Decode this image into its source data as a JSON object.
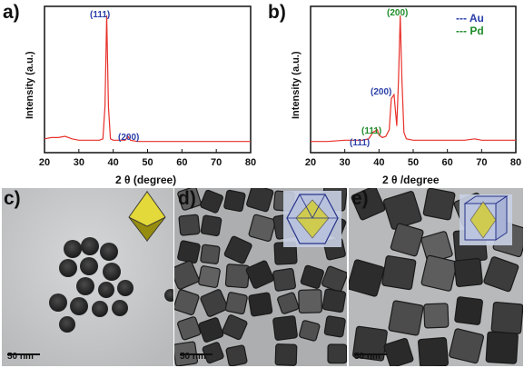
{
  "panels": {
    "a": {
      "letter": "a)",
      "ylabel": "Intensity (a.u.)",
      "xlabel": "2 θ (degree)",
      "peak1": "(111)",
      "peak2": "(200)"
    },
    "b": {
      "letter": "b)",
      "ylabel": "Intensity (a.u.)",
      "xlabel": "2 θ /degree",
      "legend_au": "--- Au",
      "legend_pd": "--- Pd",
      "peak_pd200": "(200)",
      "peak_au200": "(200)",
      "peak_pd111": "(111)",
      "peak_au111": "(111)"
    },
    "c": {
      "letter": "c)",
      "scalebar": "50 nm"
    },
    "d": {
      "letter": "d)",
      "scalebar": "50 nm"
    },
    "e": {
      "letter": "e)",
      "scalebar": "50 nm"
    }
  },
  "colors": {
    "xrd_line": "#e8302a",
    "au": "#2a3fa8",
    "pd": "#1e8c2a"
  },
  "chart_data": [
    {
      "type": "line",
      "title": "",
      "xlabel": "2 θ (degree)",
      "ylabel": "Intensity (a.u.)",
      "xlim": [
        20,
        80
      ],
      "xticks": [
        20,
        30,
        40,
        50,
        60,
        70,
        80
      ],
      "series": [
        {
          "x": [
            20,
            22,
            24,
            26,
            28,
            30,
            32,
            34,
            36,
            37,
            37.6,
            38.1,
            38.6,
            39.2,
            40,
            42,
            43.5,
            44.3,
            45,
            47,
            50,
            55,
            60,
            65,
            70,
            75,
            80
          ],
          "values": [
            0.05,
            0.06,
            0.06,
            0.07,
            0.05,
            0.04,
            0.04,
            0.04,
            0.04,
            0.05,
            0.3,
            1.0,
            0.3,
            0.05,
            0.04,
            0.04,
            0.04,
            0.07,
            0.04,
            0.03,
            0.03,
            0.03,
            0.03,
            0.03,
            0.03,
            0.03,
            0.03
          ]
        }
      ],
      "annotations": [
        "(111)",
        "(200)"
      ]
    },
    {
      "type": "line",
      "title": "",
      "xlabel": "2 θ /degree",
      "ylabel": "Intensity (a.u.)",
      "xlim": [
        20,
        80
      ],
      "xticks": [
        20,
        30,
        40,
        50,
        60,
        70,
        80
      ],
      "series": [
        {
          "x": [
            20,
            25,
            30,
            35,
            37,
            38.2,
            39.5,
            40,
            41,
            42,
            43,
            43.6,
            44.4,
            45.2,
            45.7,
            46.2,
            46.7,
            47.3,
            48,
            50,
            55,
            60,
            65,
            68,
            70,
            75,
            80
          ],
          "values": [
            0.03,
            0.03,
            0.04,
            0.04,
            0.05,
            0.1,
            0.12,
            0.08,
            0.06,
            0.07,
            0.12,
            0.36,
            0.39,
            0.15,
            0.5,
            1.0,
            0.5,
            0.1,
            0.05,
            0.04,
            0.04,
            0.04,
            0.04,
            0.05,
            0.04,
            0.04,
            0.04
          ]
        }
      ],
      "legend": [
        "--- Au",
        "--- Pd"
      ],
      "legend_position": "top-right",
      "annotations": [
        "(111)",
        "(111)",
        "(200)",
        "(200)"
      ]
    }
  ]
}
